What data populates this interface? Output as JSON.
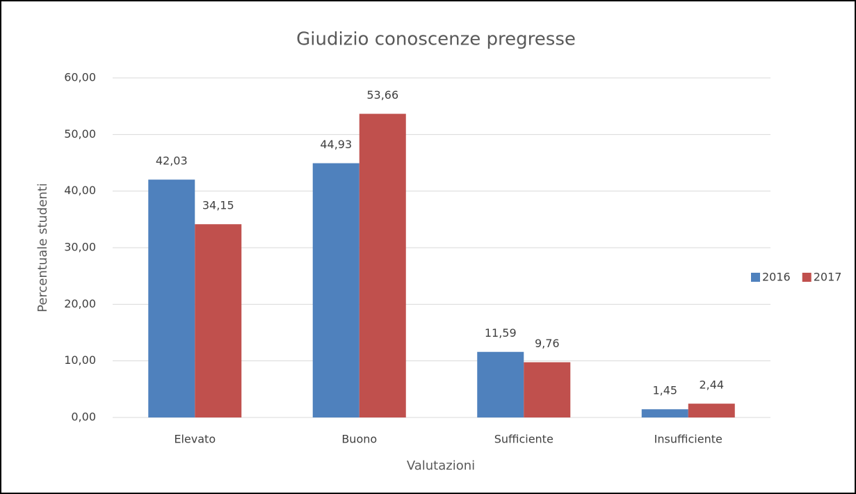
{
  "chart_data": {
    "type": "bar",
    "title": "Giudizio conoscenze pregresse",
    "x_label": "Valutazioni",
    "y_label": "Percentuale studenti",
    "categories": [
      "Elevato",
      "Buono",
      "Sufficiente",
      "Insufficiente"
    ],
    "series": [
      {
        "name": "2016",
        "color": "#4f81bd",
        "values": [
          42.03,
          44.93,
          11.59,
          1.45
        ],
        "value_labels": [
          "42,03",
          "44,93",
          "11,59",
          "1,45"
        ]
      },
      {
        "name": "2017",
        "color": "#c0504d",
        "values": [
          34.15,
          53.66,
          9.76,
          2.44
        ],
        "value_labels": [
          "34,15",
          "53,66",
          "9,76",
          "2,44"
        ]
      }
    ],
    "ylim": [
      0,
      60
    ],
    "yticks": [
      {
        "value": 0,
        "label": "0,00"
      },
      {
        "value": 10,
        "label": "10,00"
      },
      {
        "value": 20,
        "label": "20,00"
      },
      {
        "value": 30,
        "label": "30,00"
      },
      {
        "value": 40,
        "label": "40,00"
      },
      {
        "value": 50,
        "label": "50,00"
      },
      {
        "value": 60,
        "label": "60,00"
      }
    ],
    "grid": true,
    "legend": "right"
  }
}
